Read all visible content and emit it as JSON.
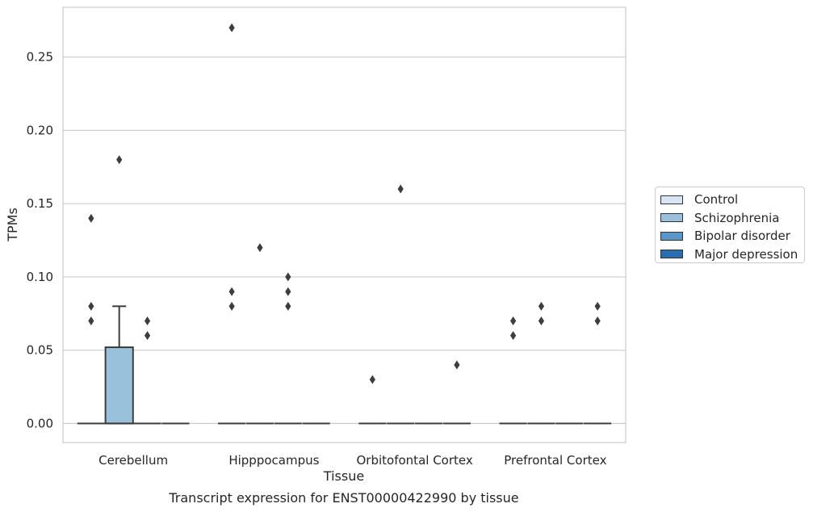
{
  "chart_data": {
    "type": "box",
    "title": "",
    "caption": "Transcript expression for ENST00000422990 by tissue",
    "xlabel": "Tissue",
    "ylabel": "TPMs",
    "ylim": [
      -0.013,
      0.284
    ],
    "yticks": [
      0.0,
      0.05,
      0.1,
      0.15,
      0.2,
      0.25
    ],
    "ytick_labels": [
      "0.00",
      "0.05",
      "0.10",
      "0.15",
      "0.20",
      "0.25"
    ],
    "categories": [
      "Cerebellum",
      "Hipppocampus",
      "Orbitofontal Cortex",
      "Prefrontal Cortex"
    ],
    "grid": "horizontal",
    "legend_position": "right",
    "series": [
      {
        "name": "Control",
        "color": "#d7e6f2",
        "boxes": [
          {
            "q1": 0.0,
            "median": 0.0,
            "q3": 0.0,
            "whisker_low": 0.0,
            "whisker_high": 0.0,
            "outliers": [
              0.07,
              0.08,
              0.14
            ]
          },
          {
            "q1": 0.0,
            "median": 0.0,
            "q3": 0.0,
            "whisker_low": 0.0,
            "whisker_high": 0.0,
            "outliers": [
              0.08,
              0.09,
              0.27
            ]
          },
          {
            "q1": 0.0,
            "median": 0.0,
            "q3": 0.0,
            "whisker_low": 0.0,
            "whisker_high": 0.0,
            "outliers": [
              0.03
            ]
          },
          {
            "q1": 0.0,
            "median": 0.0,
            "q3": 0.0,
            "whisker_low": 0.0,
            "whisker_high": 0.0,
            "outliers": [
              0.06,
              0.07
            ]
          }
        ]
      },
      {
        "name": "Schizophrenia",
        "color": "#9ac1dc",
        "boxes": [
          {
            "q1": 0.0,
            "median": 0.0,
            "q3": 0.052,
            "whisker_low": 0.0,
            "whisker_high": 0.08,
            "outliers": [
              0.18
            ]
          },
          {
            "q1": 0.0,
            "median": 0.0,
            "q3": 0.0,
            "whisker_low": 0.0,
            "whisker_high": 0.0,
            "outliers": [
              0.12
            ]
          },
          {
            "q1": 0.0,
            "median": 0.0,
            "q3": 0.0,
            "whisker_low": 0.0,
            "whisker_high": 0.0,
            "outliers": [
              0.16
            ]
          },
          {
            "q1": 0.0,
            "median": 0.0,
            "q3": 0.0,
            "whisker_low": 0.0,
            "whisker_high": 0.0,
            "outliers": [
              0.07,
              0.08
            ]
          }
        ]
      },
      {
        "name": "Bipolar disorder",
        "color": "#5a97c8",
        "boxes": [
          {
            "q1": 0.0,
            "median": 0.0,
            "q3": 0.0,
            "whisker_low": 0.0,
            "whisker_high": 0.0,
            "outliers": [
              0.06,
              0.07
            ]
          },
          {
            "q1": 0.0,
            "median": 0.0,
            "q3": 0.0,
            "whisker_low": 0.0,
            "whisker_high": 0.0,
            "outliers": [
              0.08,
              0.09,
              0.1
            ]
          },
          {
            "q1": 0.0,
            "median": 0.0,
            "q3": 0.0,
            "whisker_low": 0.0,
            "whisker_high": 0.0,
            "outliers": []
          },
          {
            "q1": 0.0,
            "median": 0.0,
            "q3": 0.0,
            "whisker_low": 0.0,
            "whisker_high": 0.0,
            "outliers": []
          }
        ]
      },
      {
        "name": "Major depression",
        "color": "#2a6ead",
        "boxes": [
          {
            "q1": 0.0,
            "median": 0.0,
            "q3": 0.0,
            "whisker_low": 0.0,
            "whisker_high": 0.0,
            "outliers": []
          },
          {
            "q1": 0.0,
            "median": 0.0,
            "q3": 0.0,
            "whisker_low": 0.0,
            "whisker_high": 0.0,
            "outliers": []
          },
          {
            "q1": 0.0,
            "median": 0.0,
            "q3": 0.0,
            "whisker_low": 0.0,
            "whisker_high": 0.0,
            "outliers": [
              0.04
            ]
          },
          {
            "q1": 0.0,
            "median": 0.0,
            "q3": 0.0,
            "whisker_low": 0.0,
            "whisker_high": 0.0,
            "outliers": [
              0.07,
              0.08
            ]
          }
        ]
      }
    ]
  }
}
